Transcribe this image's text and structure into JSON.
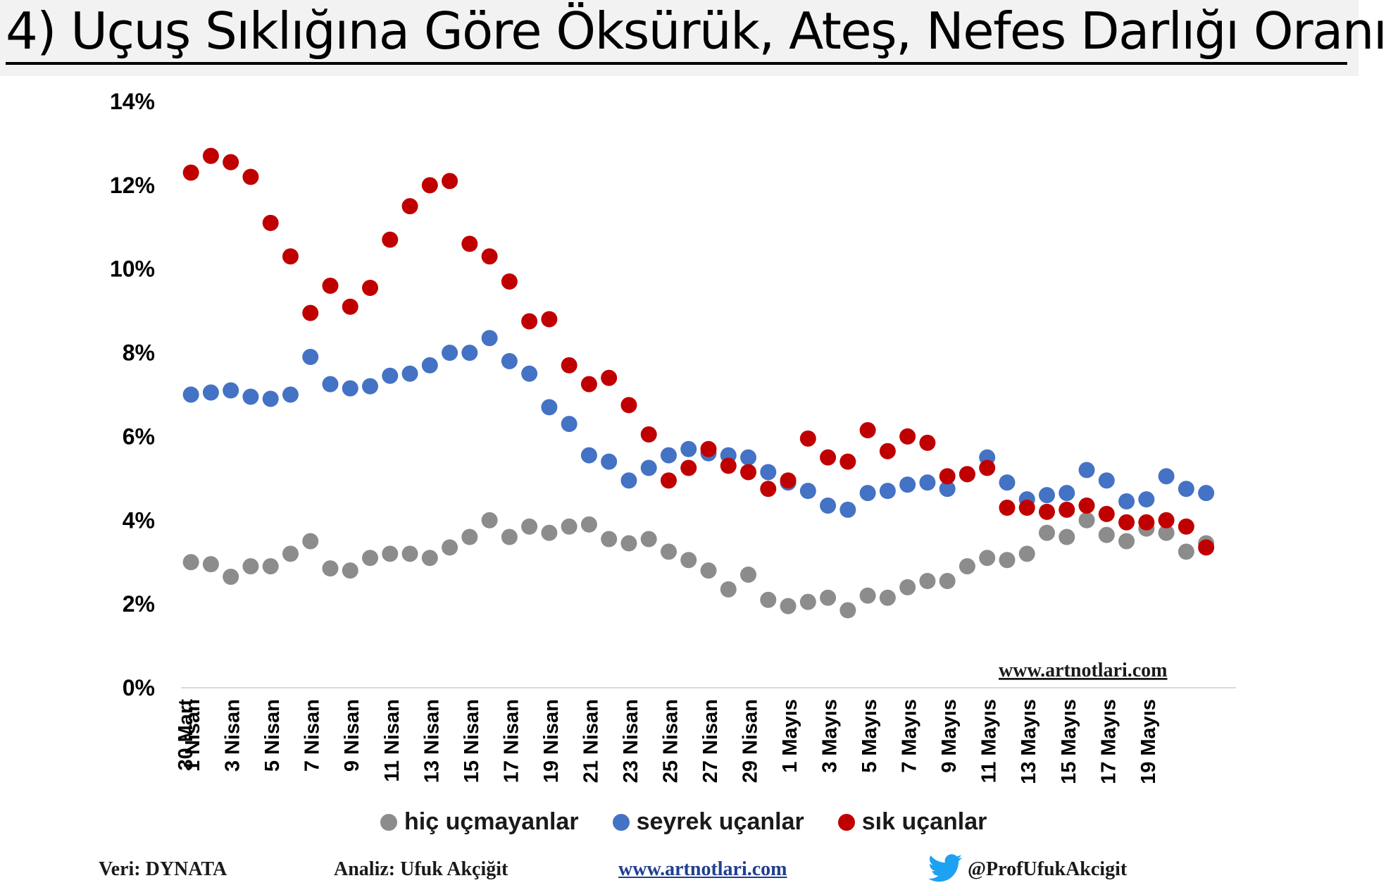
{
  "title": "4) Uçuş Sıklığına Göre Öksürük, Ateş, Nefes Darlığı Oranı",
  "watermark": "www.artnotlari.com",
  "footer": {
    "source": "Veri: DYNATA",
    "analysis": "Analiz: Ufuk Akçiğit",
    "website": "www.artnotlari.com",
    "twitter": "@ProfUfukAkcigit"
  },
  "colors": {
    "gray": "#8c8c8c",
    "blue": "#4472c4",
    "red": "#c00000",
    "axis": "#d9d9d9"
  },
  "chart_data": {
    "type": "scatter",
    "title": "4) Uçuş Sıklığına Göre Öksürük, Ateş, Nefes Darlığı Oranı",
    "ylim": [
      0,
      14
    ],
    "y_ticks": [
      "0%",
      "2%",
      "4%",
      "6%",
      "8%",
      "10%",
      "12%",
      "14%"
    ],
    "y_unit": "%",
    "x_tick_labels": [
      "30 Mart",
      "1 Nisan",
      "3 Nisan",
      "5 Nisan",
      "7 Nisan",
      "9 Nisan",
      "11 Nisan",
      "13 Nisan",
      "15 Nisan",
      "17 Nisan",
      "19 Nisan",
      "21 Nisan",
      "23 Nisan",
      "25 Nisan",
      "27 Nisan",
      "29 Nisan",
      "1 Mayıs",
      "3 Mayıs",
      "5 Mayıs",
      "7 Mayıs",
      "9 Mayıs",
      "11 Mayıs",
      "13 Mayıs",
      "15 Mayıs",
      "17 Mayıs",
      "19 Mayıs"
    ],
    "x": [
      "31 Mart",
      "1 Nisan",
      "2 Nisan",
      "3 Nisan",
      "4 Nisan",
      "5 Nisan",
      "6 Nisan",
      "7 Nisan",
      "8 Nisan",
      "9 Nisan",
      "10 Nisan",
      "11 Nisan",
      "12 Nisan",
      "13 Nisan",
      "14 Nisan",
      "15 Nisan",
      "16 Nisan",
      "17 Nisan",
      "18 Nisan",
      "19 Nisan",
      "20 Nisan",
      "21 Nisan",
      "22 Nisan",
      "23 Nisan",
      "24 Nisan",
      "25 Nisan",
      "26 Nisan",
      "27 Nisan",
      "28 Nisan",
      "29 Nisan",
      "30 Nisan",
      "1 Mayıs",
      "2 Mayıs",
      "3 Mayıs",
      "4 Mayıs",
      "5 Mayıs",
      "6 Mayıs",
      "7 Mayıs",
      "8 Mayıs",
      "9 Mayıs",
      "10 Mayıs",
      "11 Mayıs",
      "12 Mayıs",
      "13 Mayıs",
      "14 Mayıs",
      "15 Mayıs",
      "16 Mayıs",
      "17 Mayıs",
      "18 Mayıs",
      "19 Mayıs",
      "20 Mayıs",
      "21 Mayıs",
      "22 Mayıs"
    ],
    "series": [
      {
        "name": "hiç uçmayanlar",
        "color": "#8c8c8c",
        "values": [
          3.0,
          2.95,
          2.65,
          2.9,
          2.9,
          3.2,
          3.5,
          2.85,
          2.8,
          3.1,
          3.2,
          3.2,
          3.1,
          3.35,
          3.6,
          4.0,
          3.6,
          3.85,
          3.7,
          3.85,
          3.9,
          3.55,
          3.45,
          3.55,
          3.25,
          3.05,
          2.8,
          2.35,
          2.7,
          2.1,
          1.95,
          2.05,
          2.15,
          1.85,
          2.2,
          2.15,
          2.4,
          2.55,
          2.55,
          2.9,
          3.1,
          3.05,
          3.2,
          3.7,
          3.6,
          4.0,
          3.65,
          3.5,
          3.8,
          3.7,
          3.25,
          3.45,
          null
        ]
      },
      {
        "name": "seyrek uçanlar",
        "color": "#4472c4",
        "values": [
          7.0,
          7.05,
          7.1,
          6.95,
          6.9,
          7.0,
          7.9,
          7.25,
          7.15,
          7.2,
          7.45,
          7.5,
          7.7,
          8.0,
          8.0,
          8.35,
          7.8,
          7.5,
          6.7,
          6.3,
          5.55,
          5.4,
          4.95,
          5.25,
          5.55,
          5.7,
          5.6,
          5.55,
          5.5,
          5.15,
          4.9,
          4.7,
          4.35,
          4.25,
          4.65,
          4.7,
          4.85,
          4.9,
          4.75,
          5.1,
          5.5,
          4.9,
          4.5,
          4.6,
          4.65,
          5.2,
          4.95,
          4.45,
          4.5,
          5.05,
          4.75,
          4.65,
          null
        ]
      },
      {
        "name": "sık uçanlar",
        "color": "#c00000",
        "values": [
          12.3,
          12.7,
          12.55,
          12.2,
          11.1,
          10.3,
          8.95,
          9.6,
          9.1,
          9.55,
          10.7,
          11.5,
          12.0,
          12.1,
          10.6,
          10.3,
          9.7,
          8.75,
          8.8,
          7.7,
          7.25,
          7.4,
          6.75,
          6.05,
          4.95,
          5.25,
          5.7,
          5.3,
          5.15,
          4.75,
          4.95,
          5.95,
          5.5,
          5.4,
          6.15,
          5.65,
          6.0,
          5.85,
          5.05,
          5.1,
          5.25,
          4.3,
          4.3,
          4.2,
          4.25,
          4.35,
          4.15,
          3.95,
          3.95,
          4.0,
          3.85,
          3.35,
          null
        ]
      }
    ],
    "legend_position": "bottom",
    "grid": false
  }
}
